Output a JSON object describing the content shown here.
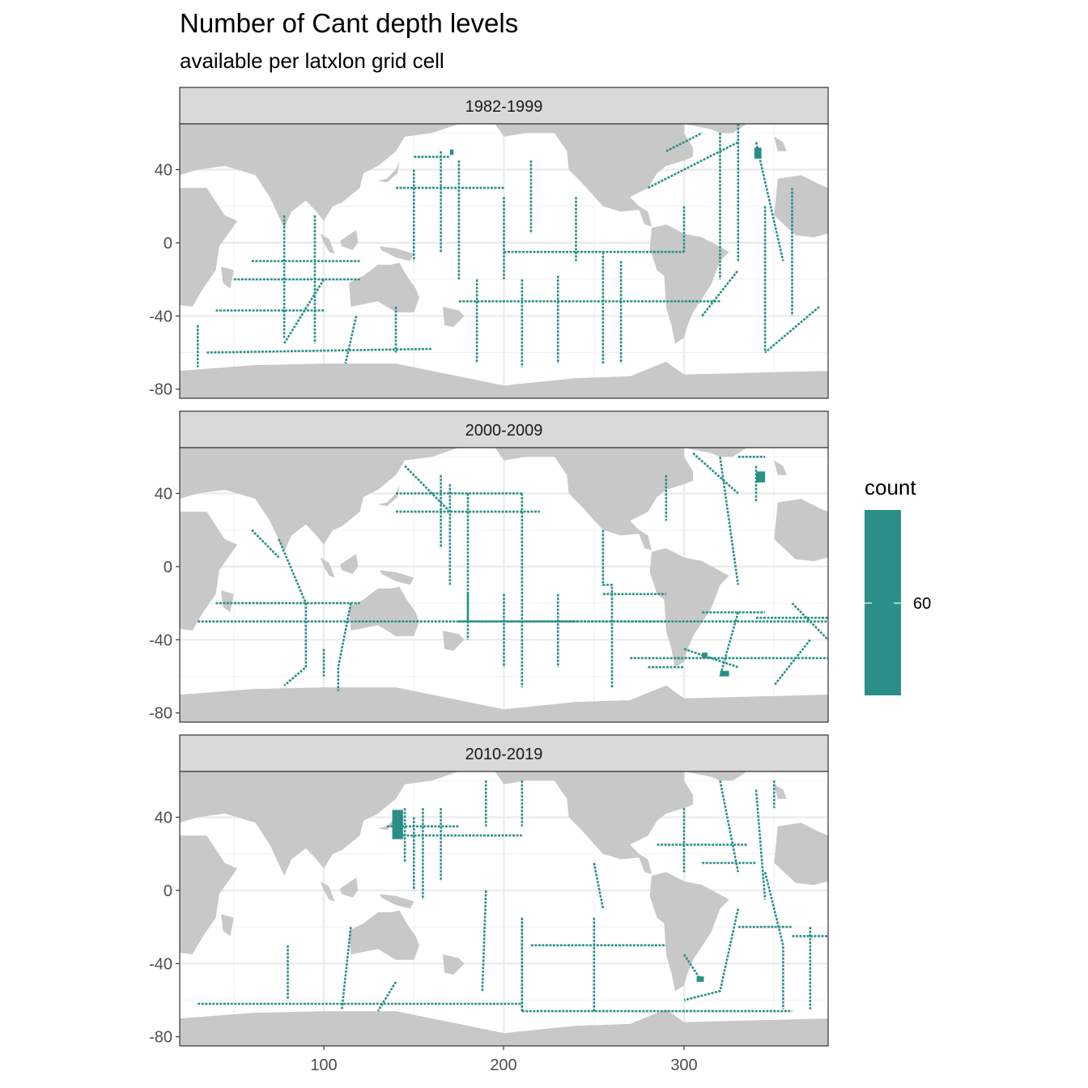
{
  "chart_data": {
    "type": "heatmap",
    "title": "Number of Cant depth levels",
    "subtitle": "available per latxlon grid cell",
    "xlabel": "",
    "ylabel": "",
    "xlim": [
      20,
      380
    ],
    "ylim": [
      -85,
      65
    ],
    "x_ticks": [
      "100",
      "200",
      "300"
    ],
    "y_ticks": [
      "40",
      "0",
      "-40",
      "-80"
    ],
    "grid": true,
    "legend": {
      "title": "count",
      "position": "right",
      "labels": [
        "60"
      ],
      "color": "#2A9087"
    },
    "colors": {
      "track": "#2A9087",
      "land": "#C8C8C8",
      "ocean": "#FFFFFF",
      "grid": "#EBEBEB",
      "strip": "#D9D9D9",
      "border": "#333333"
    },
    "panels": [
      {
        "label": "1982-1999",
        "tracks": [
          [
            [
              40,
              -37
            ],
            [
              100,
              -37
            ]
          ],
          [
            [
              35,
              -60
            ],
            [
              160,
              -58
            ]
          ],
          [
            [
              50,
              -20
            ],
            [
              120,
              -20
            ]
          ],
          [
            [
              60,
              -10
            ],
            [
              120,
              -10
            ]
          ],
          [
            [
              78,
              15
            ],
            [
              78,
              -52
            ]
          ],
          [
            [
              95,
              15
            ],
            [
              95,
              -55
            ]
          ],
          [
            [
              100,
              -20
            ],
            [
              78,
              -55
            ]
          ],
          [
            [
              140,
              -35
            ],
            [
              140,
              -60
            ]
          ],
          [
            [
              118,
              -40
            ],
            [
              112,
              -66
            ]
          ],
          [
            [
              175,
              -32
            ],
            [
              320,
              -32
            ]
          ],
          [
            [
              185,
              -20
            ],
            [
              185,
              -66
            ]
          ],
          [
            [
              210,
              -20
            ],
            [
              210,
              -68
            ]
          ],
          [
            [
              230,
              -18
            ],
            [
              230,
              -66
            ]
          ],
          [
            [
              255,
              -5
            ],
            [
              255,
              -66
            ]
          ],
          [
            [
              150,
              40
            ],
            [
              150,
              -10
            ]
          ],
          [
            [
              165,
              50
            ],
            [
              165,
              -5
            ]
          ],
          [
            [
              175,
              45
            ],
            [
              175,
              -20
            ]
          ],
          [
            [
              140,
              30
            ],
            [
              200,
              30
            ]
          ],
          [
            [
              150,
              47
            ],
            [
              170,
              47
            ]
          ],
          [
            [
              200,
              25
            ],
            [
              200,
              -20
            ]
          ],
          [
            [
              215,
              45
            ],
            [
              215,
              5
            ]
          ],
          [
            [
              240,
              25
            ],
            [
              240,
              -10
            ]
          ],
          [
            [
              300,
              20
            ],
            [
              300,
              -5
            ]
          ],
          [
            [
              320,
              60
            ],
            [
              320,
              -20
            ]
          ],
          [
            [
              330,
              65
            ],
            [
              330,
              -10
            ]
          ],
          [
            [
              340,
              55
            ],
            [
              355,
              -10
            ]
          ],
          [
            [
              345,
              20
            ],
            [
              345,
              -60
            ]
          ],
          [
            [
              360,
              30
            ],
            [
              360,
              -40
            ]
          ],
          [
            [
              375,
              -35
            ],
            [
              345,
              -60
            ]
          ],
          [
            [
              310,
              -40
            ],
            [
              330,
              -15
            ]
          ],
          [
            [
              290,
              50
            ],
            [
              310,
              60
            ]
          ],
          [
            [
              280,
              30
            ],
            [
              330,
              55
            ]
          ],
          [
            [
              200,
              -5
            ],
            [
              300,
              -5
            ]
          ],
          [
            [
              265,
              -10
            ],
            [
              265,
              -66
            ]
          ],
          [
            [
              30,
              -45
            ],
            [
              30,
              -68
            ]
          ]
        ],
        "blocks": [
          [
            339,
            46,
            4,
            6
          ],
          [
            170,
            48,
            2,
            3
          ]
        ]
      },
      {
        "label": "2000-2009",
        "tracks": [
          [
            [
              30,
              -30
            ],
            [
              380,
              -30
            ]
          ],
          [
            [
              40,
              -20
            ],
            [
              120,
              -20
            ]
          ],
          [
            [
              75,
              15
            ],
            [
              90,
              -20
            ],
            [
              90,
              -55
            ],
            [
              78,
              -65
            ]
          ],
          [
            [
              60,
              20
            ],
            [
              75,
              5
            ]
          ],
          [
            [
              100,
              -45
            ],
            [
              100,
              -60
            ]
          ],
          [
            [
              115,
              -20
            ],
            [
              108,
              -55
            ],
            [
              108,
              -68
            ]
          ],
          [
            [
              140,
              30
            ],
            [
              220,
              30
            ]
          ],
          [
            [
              140,
              40
            ],
            [
              210,
              40
            ]
          ],
          [
            [
              145,
              55
            ],
            [
              170,
              30
            ]
          ],
          [
            [
              170,
              45
            ],
            [
              170,
              -10
            ]
          ],
          [
            [
              180,
              40
            ],
            [
              180,
              -40
            ]
          ],
          [
            [
              165,
              50
            ],
            [
              165,
              10
            ]
          ],
          [
            [
              200,
              -15
            ],
            [
              200,
              -55
            ]
          ],
          [
            [
              210,
              40
            ],
            [
              210,
              -66
            ]
          ],
          [
            [
              180,
              -15
            ],
            [
              180,
              -30
            ]
          ],
          [
            [
              230,
              -15
            ],
            [
              230,
              -55
            ]
          ],
          [
            [
              255,
              20
            ],
            [
              255,
              -10
            ],
            [
              260,
              -10
            ],
            [
              260,
              -66
            ]
          ],
          [
            [
              175,
              -30
            ],
            [
              240,
              -30
            ]
          ],
          [
            [
              255,
              -15
            ],
            [
              290,
              -15
            ]
          ],
          [
            [
              270,
              -50
            ],
            [
              380,
              -50
            ]
          ],
          [
            [
              280,
              -55
            ],
            [
              300,
              -55
            ]
          ],
          [
            [
              300,
              -45
            ],
            [
              330,
              -55
            ]
          ],
          [
            [
              290,
              50
            ],
            [
              290,
              25
            ]
          ],
          [
            [
              305,
              62
            ],
            [
              330,
              40
            ]
          ],
          [
            [
              310,
              -25
            ],
            [
              345,
              -25
            ]
          ],
          [
            [
              340,
              -28
            ],
            [
              380,
              -28
            ]
          ],
          [
            [
              360,
              -20
            ],
            [
              380,
              -40
            ]
          ],
          [
            [
              370,
              -40
            ],
            [
              350,
              -65
            ]
          ],
          [
            [
              320,
              60
            ],
            [
              330,
              -10
            ]
          ],
          [
            [
              330,
              60
            ],
            [
              345,
              60
            ]
          ],
          [
            [
              340,
              55
            ],
            [
              340,
              35
            ]
          ],
          [
            [
              230,
              -30
            ],
            [
              290,
              -30
            ]
          ],
          [
            [
              330,
              -25
            ],
            [
              320,
              -60
            ]
          ]
        ],
        "blocks": [
          [
            340,
            46,
            5,
            6
          ],
          [
            320,
            -60,
            5,
            3
          ],
          [
            310,
            -50,
            3,
            3
          ]
        ]
      },
      {
        "label": "2010-2019",
        "tracks": [
          [
            [
              140,
              30
            ],
            [
              210,
              30
            ]
          ],
          [
            [
              150,
              40
            ],
            [
              150,
              0
            ]
          ],
          [
            [
              155,
              45
            ],
            [
              155,
              -5
            ]
          ],
          [
            [
              165,
              45
            ],
            [
              165,
              5
            ]
          ],
          [
            [
              145,
              45
            ],
            [
              145,
              15
            ]
          ],
          [
            [
              135,
              35
            ],
            [
              175,
              35
            ]
          ],
          [
            [
              190,
              60
            ],
            [
              190,
              35
            ]
          ],
          [
            [
              210,
              60
            ],
            [
              210,
              35
            ]
          ],
          [
            [
              215,
              -30
            ],
            [
              290,
              -30
            ]
          ],
          [
            [
              210,
              -15
            ],
            [
              210,
              -66
            ]
          ],
          [
            [
              210,
              -15
            ],
            [
              210,
              -66
            ]
          ],
          [
            [
              250,
              -15
            ],
            [
              250,
              -66
            ]
          ],
          [
            [
              250,
              15
            ],
            [
              255,
              -10
            ]
          ],
          [
            [
              190,
              0
            ],
            [
              188,
              -55
            ]
          ],
          [
            [
              140,
              -50
            ],
            [
              130,
              -66
            ]
          ],
          [
            [
              115,
              -20
            ],
            [
              110,
              -65
            ]
          ],
          [
            [
              80,
              -30
            ],
            [
              80,
              -60
            ]
          ],
          [
            [
              210,
              -66
            ],
            [
              360,
              -66
            ]
          ],
          [
            [
              30,
              -62
            ],
            [
              210,
              -62
            ]
          ],
          [
            [
              285,
              25
            ],
            [
              335,
              25
            ]
          ],
          [
            [
              300,
              45
            ],
            [
              300,
              10
            ]
          ],
          [
            [
              320,
              60
            ],
            [
              330,
              10
            ]
          ],
          [
            [
              340,
              55
            ],
            [
              345,
              -5
            ]
          ],
          [
            [
              350,
              60
            ],
            [
              350,
              45
            ]
          ],
          [
            [
              330,
              -20
            ],
            [
              360,
              -20
            ]
          ],
          [
            [
              360,
              -25
            ],
            [
              380,
              -25
            ]
          ],
          [
            [
              345,
              10
            ],
            [
              355,
              -30
            ],
            [
              355,
              -65
            ]
          ],
          [
            [
              370,
              -20
            ],
            [
              370,
              -65
            ]
          ],
          [
            [
              330,
              -10
            ],
            [
              320,
              -55
            ],
            [
              300,
              -60
            ]
          ],
          [
            [
              310,
              15
            ],
            [
              340,
              15
            ]
          ],
          [
            [
              300,
              -35
            ],
            [
              310,
              -50
            ]
          ]
        ],
        "blocks": [
          [
            138,
            28,
            6,
            16
          ],
          [
            307,
            -50,
            4,
            3
          ]
        ]
      }
    ]
  }
}
